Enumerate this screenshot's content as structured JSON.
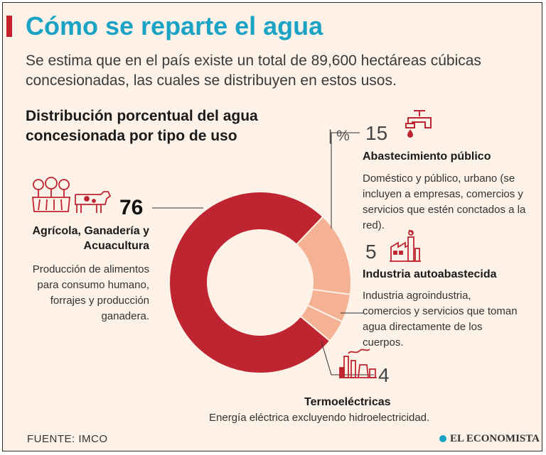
{
  "header": {
    "title": "Cómo se reparte el agua",
    "subtitle": "Se estima que en el país existe un total de 89,600 hectáreas cúbicas concesionadas, las cuales se distribuyen en estos usos."
  },
  "chart_data": {
    "type": "pie",
    "title": "Distribución porcentual del agua concesionada por tipo de uso",
    "unit": "| %",
    "colors": [
      "#bf2530",
      "#f4b193",
      "#f4b193",
      "#f4b193"
    ],
    "slices": [
      {
        "label": "Agrícola, Ganadería y Acuacultura",
        "value": 76,
        "description": "Producción de alimentos para consumo humano, forrajes y producción ganadera."
      },
      {
        "label": "Abastecimiento público",
        "value": 15,
        "description": "Doméstico y público, urbano (se incluyen a empresas, comercios y servicios que estén conctados a la red)."
      },
      {
        "label": "Industria autoabastecida",
        "value": 5,
        "description": "Industria agroindustria, comercios y servicios que toman agua directamente de los cuerpos."
      },
      {
        "label": "Termoeléctricas",
        "value": 4,
        "description": "Energía eléctrica excluyendo hidroelectricidad."
      }
    ]
  },
  "icons": {
    "agricultura": "tractor-field-icon",
    "ganaderia": "cow-icon",
    "abastecimiento": "faucet-icon",
    "industria": "factory-icon",
    "termoelectricas": "power-plant-icon"
  },
  "footer": {
    "source": "FUENTE: IMCO",
    "brand": "EL ECONOMISTA"
  }
}
